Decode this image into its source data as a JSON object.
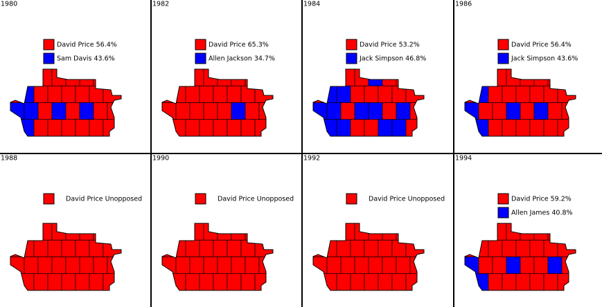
{
  "panels": [
    {
      "year": "1980",
      "legend": [
        {
          "label": "David Price 56.4%",
          "color": "#ff0000"
        },
        {
          "label": "Sam Davis 43.6%",
          "color": "#0000ff"
        }
      ]
    },
    {
      "year": "1982",
      "legend": [
        {
          "label": "David Price 65.3%",
          "color": "#ff0000"
        },
        {
          "label": "Allen Jackson 34.7%",
          "color": "#0000ff"
        }
      ]
    },
    {
      "year": "1984",
      "legend": [
        {
          "label": "David Price 53.2%",
          "color": "#ff0000"
        },
        {
          "label": "Jack Simpson 46.8%",
          "color": "#0000ff"
        }
      ]
    },
    {
      "year": "1986",
      "legend": [
        {
          "label": "David Price 56.4%",
          "color": "#ff0000"
        },
        {
          "label": "Jack Simpson 43.6%",
          "color": "#0000ff"
        }
      ]
    },
    {
      "year": "1988",
      "legend": [
        {
          "label": "David Price Unopposed",
          "color": "#ff0000"
        }
      ]
    },
    {
      "year": "1990",
      "legend": [
        {
          "label": "David Price Unopposed",
          "color": "#ff0000"
        }
      ]
    },
    {
      "year": "1992",
      "legend": [
        {
          "label": "David Price Unopposed",
          "color": "#ff0000"
        }
      ]
    },
    {
      "year": "1994",
      "legend": [
        {
          "label": "David Price 59.2%",
          "color": "#ff0000"
        },
        {
          "label": "Allen James 40.8%",
          "color": "#0000ff"
        }
      ]
    }
  ]
}
